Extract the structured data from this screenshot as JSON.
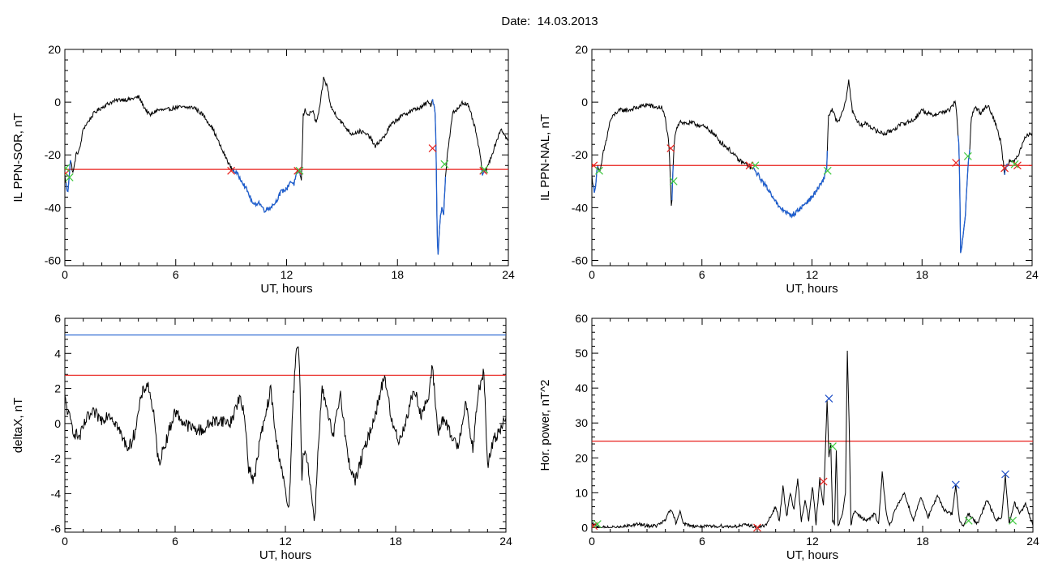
{
  "page_title": {
    "label": "Date:",
    "value": "14.03.2013"
  },
  "colors": {
    "trace": "#000000",
    "threshold_red": "#e8201c",
    "highlight_blue": "#1f5fd0",
    "marker_red": "#e8201c",
    "marker_green": "#3cc83c",
    "marker_blue": "#2050c8"
  },
  "chart_data": [
    {
      "id": "il_sor",
      "type": "line",
      "title": "",
      "xlabel": "UT, hours",
      "ylabel": "IL PPN-SOR, nT",
      "xlim": [
        0,
        24
      ],
      "ylim": [
        -62,
        20
      ],
      "xticks": [
        0,
        6,
        12,
        18,
        24
      ],
      "yticks": [
        20,
        0,
        -20,
        -40,
        -60
      ],
      "threshold": -25.5,
      "noise": 0.8,
      "x": [
        0,
        0.15,
        0.3,
        0.45,
        0.6,
        0.8,
        1.0,
        1.3,
        1.6,
        2.0,
        2.5,
        3.0,
        3.5,
        4.0,
        4.3,
        4.6,
        5.0,
        5.5,
        6.0,
        6.5,
        7.0,
        7.5,
        8.0,
        8.5,
        9.0,
        9.3,
        9.6,
        9.9,
        10.2,
        10.5,
        10.8,
        11.1,
        11.4,
        11.7,
        12.0,
        12.2,
        12.4,
        12.55,
        12.7,
        12.8,
        12.9,
        13.0,
        13.2,
        13.4,
        13.6,
        13.8,
        14.0,
        14.2,
        14.4,
        14.6,
        15.0,
        15.5,
        16.0,
        16.5,
        16.8,
        17.0,
        17.3,
        17.6,
        17.9,
        18.3,
        18.8,
        19.3,
        19.6,
        19.8,
        19.9,
        20.0,
        20.05,
        20.1,
        20.15,
        20.2,
        20.3,
        20.4,
        20.5,
        20.6,
        20.7,
        20.9,
        21.0,
        21.2,
        21.5,
        21.8,
        22.0,
        22.2,
        22.4,
        22.6,
        22.8,
        23.0,
        23.3,
        23.6,
        24.0
      ],
      "y": [
        -28,
        -35,
        -22,
        -27,
        -20,
        -18,
        -10,
        -7,
        -4,
        -2,
        0,
        1,
        1,
        2,
        -2,
        -5,
        -3,
        -3,
        -2,
        -2,
        -2,
        -5,
        -10,
        -18,
        -25,
        -27,
        -30,
        -34,
        -39,
        -38,
        -41,
        -40,
        -38,
        -34,
        -33,
        -30,
        -31,
        -27,
        -26,
        -30,
        -5,
        -3,
        -5,
        -3,
        -8,
        -2,
        9,
        6,
        -2,
        -4,
        -8,
        -12,
        -11,
        -13,
        -17,
        -15,
        -13,
        -9,
        -7,
        -5,
        -3,
        -2,
        0,
        -1,
        1,
        -2,
        -5,
        -23,
        -53,
        -57,
        -45,
        -40,
        -42,
        -28,
        -20,
        -9,
        -4,
        -3,
        0,
        -1,
        -5,
        -10,
        -17,
        -27,
        -26,
        -22,
        -16,
        -10,
        -15
      ],
      "highlight_ranges": [
        [
          0.05,
          0.35
        ],
        [
          9.1,
          12.75
        ],
        [
          19.85,
          20.6
        ],
        [
          22.55,
          22.75
        ]
      ],
      "markers": [
        {
          "color": "red",
          "x": 9.0,
          "y": -26
        },
        {
          "color": "red",
          "x": 12.6,
          "y": -26
        },
        {
          "color": "red",
          "x": 19.9,
          "y": -17.5
        },
        {
          "color": "red",
          "x": 22.65,
          "y": -26
        },
        {
          "color": "red",
          "x": 0.05,
          "y": -27
        },
        {
          "color": "green",
          "x": 0.25,
          "y": -28.5
        },
        {
          "color": "green",
          "x": 12.7,
          "y": -26
        },
        {
          "color": "green",
          "x": 20.55,
          "y": -23.5
        },
        {
          "color": "green",
          "x": 22.7,
          "y": -25.5
        },
        {
          "color": "green",
          "x": 0.05,
          "y": -25
        }
      ]
    },
    {
      "id": "il_nal",
      "type": "line",
      "title": "",
      "xlabel": "UT, hours",
      "ylabel": "IL PPN-NAL, nT",
      "xlim": [
        0,
        24
      ],
      "ylim": [
        -62,
        20
      ],
      "xticks": [
        0,
        6,
        12,
        18,
        24
      ],
      "yticks": [
        20,
        0,
        -20,
        -40,
        -60
      ],
      "threshold": -24,
      "noise": 0.9,
      "x": [
        0,
        0.15,
        0.3,
        0.45,
        0.6,
        0.8,
        1.0,
        1.3,
        1.6,
        2.0,
        2.5,
        3.0,
        3.5,
        3.8,
        4.0,
        4.2,
        4.35,
        4.42,
        4.5,
        4.6,
        4.8,
        5.0,
        5.5,
        6.0,
        6.5,
        7.0,
        7.5,
        8.0,
        8.5,
        8.9,
        9.3,
        9.6,
        9.9,
        10.2,
        10.5,
        10.8,
        11.1,
        11.4,
        11.7,
        12.0,
        12.3,
        12.6,
        12.8,
        12.9,
        13.1,
        13.4,
        13.6,
        13.8,
        14.0,
        14.2,
        14.4,
        14.6,
        15.0,
        15.5,
        16.0,
        16.5,
        17.0,
        17.5,
        18.0,
        18.5,
        19.0,
        19.5,
        19.8,
        19.9,
        20.0,
        20.05,
        20.1,
        20.2,
        20.35,
        20.5,
        20.6,
        20.7,
        20.9,
        21.2,
        21.6,
        22.0,
        22.3,
        22.5,
        22.6,
        22.8,
        23.0,
        23.3,
        23.6,
        24.0
      ],
      "y": [
        -28,
        -35,
        -24,
        -27,
        -20,
        -14,
        -7,
        -4,
        -3,
        -3,
        -2,
        -1,
        -2,
        -2,
        -6,
        -16,
        -42,
        -25,
        -15,
        -10,
        -7,
        -8,
        -8,
        -9,
        -11,
        -15,
        -18,
        -22,
        -24,
        -26,
        -30,
        -33,
        -36,
        -40,
        -41,
        -43,
        -42,
        -40,
        -38,
        -36,
        -33,
        -30,
        -25,
        -5,
        -3,
        -8,
        -5,
        -1,
        8,
        -3,
        -6,
        -9,
        -8,
        -11,
        -12,
        -10,
        -8,
        -7,
        -3,
        -5,
        -4,
        -3,
        0,
        -5,
        -16,
        -27,
        -58,
        -52,
        -45,
        -25,
        -17,
        -5,
        -2,
        -4,
        -1,
        -8,
        -15,
        -27,
        -24,
        -22,
        -23,
        -19,
        -13,
        -12
      ],
      "highlight_ranges": [
        [
          0.05,
          0.35
        ],
        [
          4.35,
          4.45
        ],
        [
          8.7,
          12.85
        ],
        [
          19.95,
          20.6
        ],
        [
          22.5,
          22.7
        ]
      ],
      "markers": [
        {
          "color": "red",
          "x": 4.3,
          "y": -17.5
        },
        {
          "color": "red",
          "x": 8.6,
          "y": -24
        },
        {
          "color": "red",
          "x": 19.85,
          "y": -23
        },
        {
          "color": "red",
          "x": 22.5,
          "y": -25
        },
        {
          "color": "red",
          "x": 23.2,
          "y": -24
        },
        {
          "color": "red",
          "x": 0.1,
          "y": -24
        },
        {
          "color": "green",
          "x": 4.45,
          "y": -30
        },
        {
          "color": "green",
          "x": 8.9,
          "y": -24
        },
        {
          "color": "green",
          "x": 12.85,
          "y": -26
        },
        {
          "color": "green",
          "x": 20.5,
          "y": -20.5
        },
        {
          "color": "green",
          "x": 23.05,
          "y": -23.5
        },
        {
          "color": "green",
          "x": 0.4,
          "y": -26
        }
      ]
    },
    {
      "id": "deltax",
      "type": "line",
      "title": "",
      "xlabel": "UT, hours",
      "ylabel": "deltaX, nT",
      "xlim": [
        0,
        24
      ],
      "ylim": [
        -6.2,
        6
      ],
      "xticks": [
        0,
        6,
        12,
        18,
        24
      ],
      "yticks": [
        6,
        4,
        2,
        0,
        -2,
        -4,
        -6
      ],
      "hlines": [
        {
          "color": "red",
          "y": 2.75
        },
        {
          "color": "blue",
          "y": 5.05
        }
      ],
      "noise": 0.35,
      "x": [
        0,
        0.2,
        0.5,
        0.8,
        1.2,
        1.6,
        2.0,
        2.4,
        2.8,
        3.2,
        3.5,
        3.8,
        4.2,
        4.5,
        4.8,
        5.1,
        5.5,
        6.0,
        6.5,
        7.0,
        7.5,
        8.0,
        8.5,
        9.0,
        9.5,
        9.8,
        10.0,
        10.3,
        10.6,
        10.9,
        11.2,
        11.5,
        11.8,
        12.0,
        12.2,
        12.4,
        12.6,
        12.7,
        12.8,
        12.9,
        13.0,
        13.2,
        13.4,
        13.6,
        13.8,
        14.0,
        14.3,
        14.6,
        15.0,
        15.4,
        15.8,
        16.2,
        16.6,
        17.0,
        17.4,
        17.8,
        18.2,
        18.6,
        19.0,
        19.4,
        19.8,
        20.0,
        20.3,
        20.6,
        21.0,
        21.4,
        21.8,
        22.2,
        22.5,
        22.8,
        23.0,
        23.3,
        23.6,
        24.0
      ],
      "y": [
        1.4,
        0.5,
        -0.5,
        -0.8,
        0.3,
        0.6,
        0.2,
        0.6,
        0.0,
        -1.0,
        -1.4,
        -0.5,
        1.7,
        2.3,
        0.8,
        -2.3,
        -1.0,
        0.7,
        0.0,
        -0.3,
        -0.4,
        0.1,
        0.2,
        0.0,
        1.5,
        0.3,
        -2.5,
        -3.3,
        -1.0,
        0.3,
        2.0,
        -1.0,
        -2.5,
        -4.0,
        -5.0,
        1.0,
        4.2,
        4.4,
        2.0,
        -3.0,
        -1.5,
        -2.0,
        -4.0,
        -5.5,
        -1.0,
        2.0,
        0.5,
        -0.8,
        1.8,
        -2.0,
        -3.3,
        -1.8,
        -0.5,
        1.0,
        2.8,
        0.0,
        -1.0,
        0.3,
        2.0,
        0.5,
        1.5,
        3.3,
        -0.5,
        0.3,
        -0.7,
        -1.3,
        1.2,
        -1.5,
        1.8,
        3.0,
        -2.5,
        -1.0,
        -0.5,
        0.5
      ],
      "markers": []
    },
    {
      "id": "hor_power",
      "type": "line",
      "title": "",
      "xlabel": "UT, hours",
      "ylabel": "Hor. power, nT^2",
      "xlim": [
        0,
        24
      ],
      "ylim": [
        -1.3,
        60
      ],
      "xticks": [
        0,
        6,
        12,
        18,
        24
      ],
      "yticks": [
        60,
        50,
        40,
        30,
        20,
        10,
        0
      ],
      "hlines": [
        {
          "color": "red",
          "y": 24.8
        }
      ],
      "noise": 0.5,
      "x": [
        0,
        0.5,
        1.0,
        1.5,
        2.0,
        2.5,
        3.0,
        3.5,
        4.0,
        4.2,
        4.4,
        4.6,
        4.8,
        5.0,
        5.5,
        6.0,
        6.5,
        7.0,
        7.5,
        8.0,
        8.5,
        9.0,
        9.5,
        10.0,
        10.2,
        10.4,
        10.6,
        10.8,
        11.0,
        11.2,
        11.4,
        11.6,
        11.8,
        12.0,
        12.2,
        12.4,
        12.6,
        12.8,
        12.9,
        13.0,
        13.1,
        13.2,
        13.3,
        13.4,
        13.6,
        13.8,
        13.9,
        14.0,
        14.1,
        14.3,
        14.6,
        15.0,
        15.4,
        15.6,
        15.8,
        16.0,
        16.2,
        16.5,
        17.0,
        17.5,
        17.9,
        18.3,
        18.8,
        19.2,
        19.6,
        19.8,
        20.0,
        20.2,
        20.5,
        21.0,
        21.5,
        22.0,
        22.3,
        22.5,
        22.7,
        23.0,
        23.3,
        23.6,
        24.0
      ],
      "y": [
        1.0,
        0.0,
        0.0,
        0.0,
        0.5,
        1.0,
        0.5,
        0.5,
        2.0,
        5.0,
        4.0,
        1.0,
        5.0,
        1.0,
        0.5,
        0.3,
        0.3,
        0.5,
        0.3,
        0.5,
        0.8,
        0.0,
        0.8,
        6.0,
        2.0,
        12.0,
        3.0,
        10.0,
        5.0,
        14.0,
        2.0,
        8.0,
        2.0,
        12.0,
        1.0,
        14.0,
        6.0,
        37.0,
        20.0,
        24.0,
        2.0,
        1.0,
        22.0,
        0.5,
        3.0,
        10.0,
        51.0,
        30.0,
        1.0,
        5.0,
        3.0,
        2.0,
        4.0,
        1.0,
        16.0,
        5.0,
        0.5,
        5.0,
        10.0,
        2.0,
        9.0,
        3.0,
        9.0,
        5.0,
        4.0,
        12.0,
        2.0,
        0.5,
        4.0,
        1.0,
        8.0,
        2.0,
        3.0,
        15.0,
        1.0,
        7.0,
        4.0,
        7.0,
        0.5
      ],
      "markers": [
        {
          "color": "blue",
          "x": 12.9,
          "y": 37
        },
        {
          "color": "blue",
          "x": 19.8,
          "y": 12.3
        },
        {
          "color": "blue",
          "x": 22.5,
          "y": 15.3
        },
        {
          "color": "red",
          "x": 12.6,
          "y": 13.2
        },
        {
          "color": "red",
          "x": 0.1,
          "y": 0.5
        },
        {
          "color": "red",
          "x": 9.0,
          "y": 0
        },
        {
          "color": "green",
          "x": 13.1,
          "y": 23.3
        },
        {
          "color": "green",
          "x": 0.3,
          "y": 1.0
        },
        {
          "color": "green",
          "x": 20.5,
          "y": 2.0
        },
        {
          "color": "green",
          "x": 22.9,
          "y": 2.0
        }
      ]
    }
  ]
}
